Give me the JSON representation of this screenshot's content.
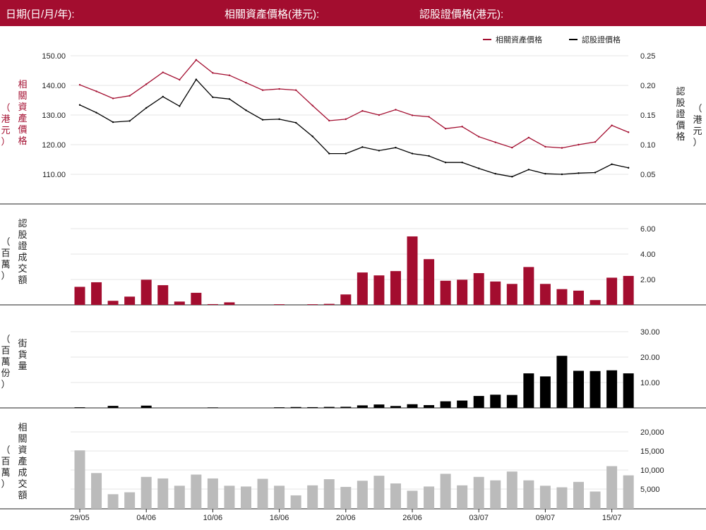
{
  "header": {
    "date_label": "日期(日/月/年):",
    "underlying_label": "相關資產價格(港元):",
    "warrant_label": "認股證價格(港元):"
  },
  "colors": {
    "header_bg": "#a30d2f",
    "underlying": "#a30d2f",
    "warrant": "#000000",
    "outstanding": "#000000",
    "underlying_turnover": "#bbbbbb"
  },
  "chart_data": [
    {
      "type": "line",
      "legend": [
        "相關資產價格",
        "認股證價格"
      ],
      "legend_position": "top-right",
      "y_left": {
        "label": [
          "（",
          "港",
          "元",
          "）",
          "相",
          "關",
          "資",
          "產",
          "價",
          "格"
        ],
        "ticks": [
          "150.00",
          "140.00",
          "130.00",
          "120.00",
          "110.00"
        ],
        "range": [
          102,
          155
        ]
      },
      "y_right": {
        "label": [
          "認",
          "股",
          "證",
          "價",
          "格",
          "（",
          "港",
          "元",
          "）"
        ],
        "ticks": [
          "0.25",
          "0.20",
          "0.15",
          "0.10",
          "0.05"
        ],
        "range": [
          0.01,
          0.275
        ]
      },
      "series": [
        {
          "name": "相關資產價格",
          "axis": "left",
          "values": [
            140.2,
            138.0,
            135.6,
            136.5,
            140.4,
            144.4,
            141.9,
            148.6,
            144.2,
            143.4,
            140.9,
            138.4,
            138.8,
            138.4,
            133.2,
            128.1,
            128.6,
            131.4,
            130.0,
            131.8,
            129.9,
            129.4,
            125.4,
            126.1,
            122.7,
            120.8,
            119.0,
            122.4,
            119.3,
            118.9,
            120.0,
            120.9,
            126.5,
            124.2
          ]
        },
        {
          "name": "認股證價格",
          "axis": "right",
          "values": [
            0.167,
            0.154,
            0.138,
            0.14,
            0.162,
            0.181,
            0.165,
            0.21,
            0.18,
            0.177,
            0.158,
            0.142,
            0.143,
            0.137,
            0.114,
            0.085,
            0.085,
            0.096,
            0.09,
            0.095,
            0.085,
            0.081,
            0.07,
            0.07,
            0.06,
            0.051,
            0.046,
            0.058,
            0.051,
            0.05,
            0.052,
            0.053,
            0.067,
            0.061
          ]
        }
      ]
    },
    {
      "type": "bar",
      "y_label": [
        "認",
        "股",
        "證",
        "成",
        "交",
        "額",
        "（",
        "百",
        "萬",
        "）"
      ],
      "ticks": [
        "6.00",
        "4.00",
        "2.00"
      ],
      "range": [
        0,
        6.3
      ],
      "values": [
        1.42,
        1.78,
        0.32,
        0.65,
        1.98,
        1.55,
        0.26,
        0.95,
        0.06,
        0.2,
        0,
        0,
        0.05,
        0,
        0.05,
        0.08,
        0.82,
        2.55,
        2.32,
        2.66,
        5.39,
        3.6,
        1.9,
        1.98,
        2.5,
        1.84,
        1.65,
        2.98,
        1.65,
        1.24,
        1.12,
        0.38,
        2.14,
        2.28
      ]
    },
    {
      "type": "bar",
      "y_label": [
        "街",
        "貨",
        "量",
        "（",
        "百",
        "萬",
        "份",
        "）"
      ],
      "ticks": [
        "30.00",
        "20.00",
        "10.00"
      ],
      "range": [
        0,
        30.6
      ],
      "values": [
        0.25,
        0,
        0.8,
        0,
        0.9,
        0,
        0,
        0,
        0.2,
        0,
        0,
        0,
        0.25,
        0.35,
        0.3,
        0.4,
        0.45,
        1.0,
        1.35,
        0.75,
        1.45,
        1.1,
        2.6,
        2.9,
        4.7,
        5.2,
        5.1,
        13.6,
        12.4,
        20.5,
        14.6,
        14.5,
        14.8,
        13.6
      ]
    },
    {
      "type": "bar",
      "y_label": [
        "相",
        "關",
        "資",
        "產",
        "成",
        "交",
        "額",
        "（",
        "百",
        "萬",
        "）"
      ],
      "ticks": [
        "20,000",
        "15,000",
        "10,000",
        "5,000"
      ],
      "range": [
        0,
        20600
      ],
      "values": [
        15200,
        9300,
        3800,
        4300,
        8300,
        7900,
        6000,
        8900,
        7900,
        6000,
        5800,
        7800,
        6000,
        3500,
        6100,
        7700,
        5700,
        7300,
        8600,
        6600,
        4700,
        5800,
        9100,
        6100,
        8300,
        7400,
        9700,
        7400,
        6000,
        5600,
        7000,
        4500,
        11100,
        8700
      ]
    },
    {
      "type": "x_axis",
      "ticks": [
        "29/05",
        "04/06",
        "10/06",
        "16/06",
        "20/06",
        "26/06",
        "03/07",
        "09/07",
        "15/07"
      ],
      "tick_index": [
        0,
        4,
        8,
        12,
        16,
        20,
        24,
        28,
        32
      ]
    }
  ]
}
